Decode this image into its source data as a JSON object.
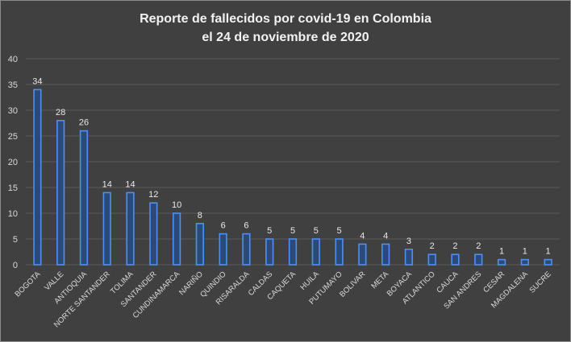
{
  "chart_data": {
    "type": "bar",
    "title_line1": "Reporte de fallecidos por covid-19 en Colombia",
    "title_line2": "el 24 de noviembre de 2020",
    "categories": [
      "BOGOTA",
      "VALLE",
      "ANTIOQUIA",
      "NORTE SANTANDER",
      "TOLIMA",
      "SANTANDER",
      "CUNDINAMARCA",
      "NARIÑO",
      "QUINDIO",
      "RISARALDA",
      "CALDAS",
      "CAQUETA",
      "HUILA",
      "PUTUMAYO",
      "BOLIVAR",
      "META",
      "BOYACA",
      "ATLANTICO",
      "CAUCA",
      "SAN ANDRES",
      "CESAR",
      "MAGDALENA",
      "SUCRE"
    ],
    "values": [
      34,
      28,
      26,
      14,
      14,
      12,
      10,
      8,
      6,
      6,
      5,
      5,
      5,
      5,
      4,
      4,
      3,
      2,
      2,
      2,
      1,
      1,
      1
    ],
    "ylim": [
      0,
      40
    ],
    "yticks": [
      0,
      5,
      10,
      15,
      20,
      25,
      30,
      35,
      40
    ],
    "grid": true,
    "colors": {
      "bar_fill": "#2a4a7a",
      "bar_edge": "#4f8ff0",
      "background": "#404040",
      "grid": "#5a5a5a"
    }
  }
}
